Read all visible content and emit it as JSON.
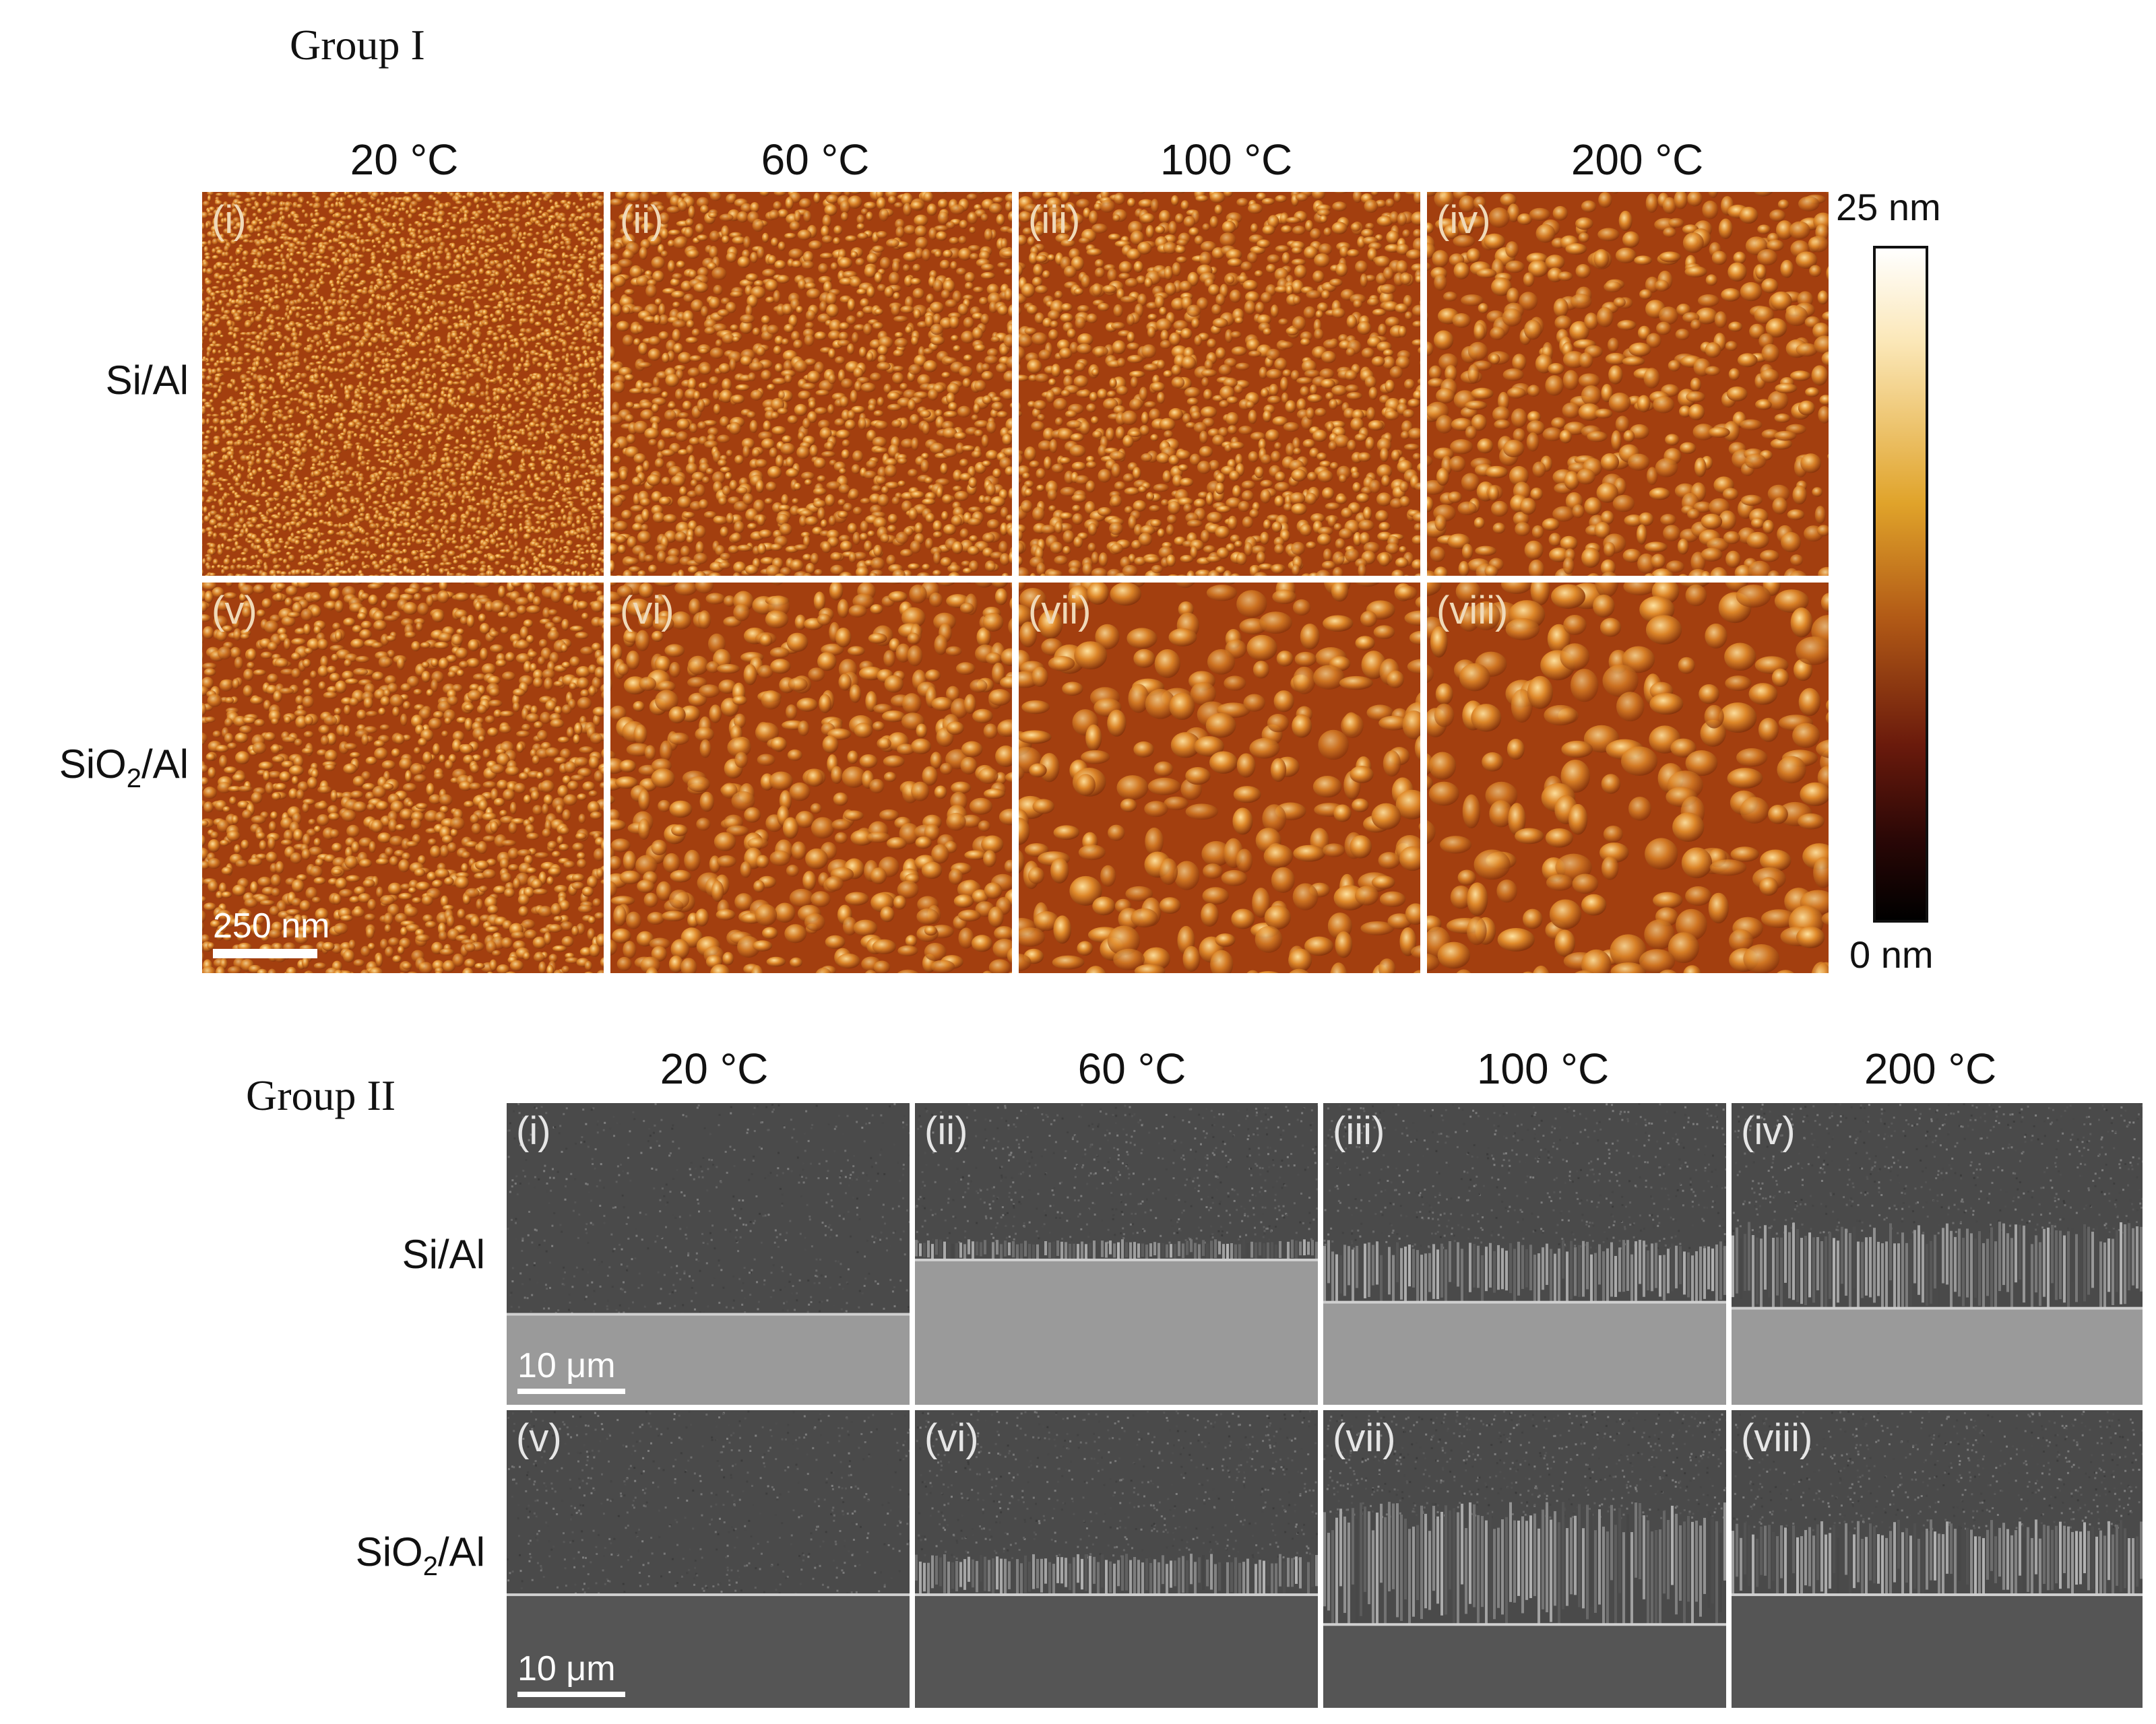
{
  "group1": {
    "title": "Group I",
    "temperatures": [
      "20 °C",
      "60 °C",
      "100 °C",
      "200 °C"
    ],
    "rows": [
      {
        "label_main": "Si/Al",
        "label_sub": "",
        "label_tail": ""
      },
      {
        "label_main": "SiO",
        "label_sub": "2",
        "label_tail": "/Al"
      }
    ],
    "panels": [
      "(i)",
      "(ii)",
      "(iii)",
      "(iv)",
      "(v)",
      "(vi)",
      "(vii)",
      "(viii)"
    ],
    "scale_bar": "250 nm",
    "colorbar": {
      "max_label": "25 nm",
      "min_label": "0 nm"
    }
  },
  "group2": {
    "title": "Group II",
    "temperatures": [
      "20 °C",
      "60 °C",
      "100 °C",
      "200 °C"
    ],
    "rows": [
      {
        "label_main": "Si/Al",
        "label_sub": "",
        "label_tail": ""
      },
      {
        "label_main": "SiO",
        "label_sub": "2",
        "label_tail": "/Al"
      }
    ],
    "panels": [
      "(i)",
      "(ii)",
      "(iii)",
      "(iv)",
      "(v)",
      "(vi)",
      "(vii)",
      "(viii)"
    ],
    "scale_bar_top": "10 μm",
    "scale_bar_bottom": "10 μm"
  },
  "colors": {
    "afm_base": "#a33f0f",
    "afm_grain": "#e08a2a",
    "afm_highlight": "#ffe3a0",
    "sem_dark": "#4a4a4a",
    "sem_light": "#9a9a9a"
  }
}
